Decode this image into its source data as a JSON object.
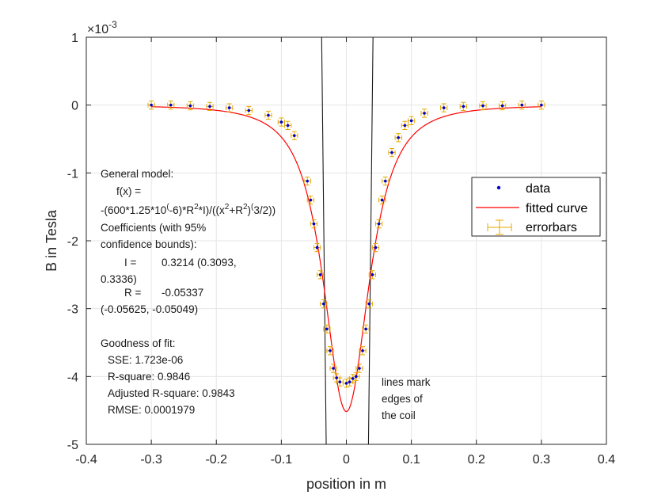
{
  "chart_data": {
    "type": "scatter",
    "title": "",
    "xlabel": "position in m",
    "ylabel": "B in Tesla",
    "exponent_label": "×10",
    "exponent_power": "-3",
    "xlim": [
      -0.4,
      0.4
    ],
    "ylim": [
      -5,
      1
    ],
    "x_ticks": [
      -0.4,
      -0.3,
      -0.2,
      -0.1,
      0,
      0.1,
      0.2,
      0.3,
      0.4
    ],
    "x_tick_labels": [
      "-0.4",
      "-0.3",
      "-0.2",
      "-0.1",
      "0",
      "0.1",
      "0.2",
      "0.3",
      "0.4"
    ],
    "y_ticks": [
      -5,
      -4,
      -3,
      -2,
      -1,
      0,
      1
    ],
    "y_tick_labels": [
      "-5",
      "-4",
      "-3",
      "-2",
      "-1",
      "0",
      "1"
    ],
    "grid": true,
    "legend_position": "right",
    "series": [
      {
        "name": "data",
        "color": "#0000cc",
        "points": [
          [
            -0.3,
            0.0
          ],
          [
            -0.27,
            0.0
          ],
          [
            -0.24,
            -0.01
          ],
          [
            -0.21,
            -0.02
          ],
          [
            -0.18,
            -0.04
          ],
          [
            -0.15,
            -0.08
          ],
          [
            -0.12,
            -0.15
          ],
          [
            -0.1,
            -0.25
          ],
          [
            -0.09,
            -0.3
          ],
          [
            -0.08,
            -0.45
          ],
          [
            -0.06,
            -1.12
          ],
          [
            -0.055,
            -1.4
          ],
          [
            -0.05,
            -1.75
          ],
          [
            -0.045,
            -2.1
          ],
          [
            -0.04,
            -2.5
          ],
          [
            -0.035,
            -2.93
          ],
          [
            -0.03,
            -3.3
          ],
          [
            -0.025,
            -3.62
          ],
          [
            -0.02,
            -3.88
          ],
          [
            -0.015,
            -4.02
          ],
          [
            -0.01,
            -4.08
          ],
          [
            0.0,
            -4.1
          ],
          [
            0.005,
            -4.08
          ],
          [
            0.01,
            -4.03
          ],
          [
            0.015,
            -4.0
          ],
          [
            0.02,
            -3.88
          ],
          [
            0.025,
            -3.62
          ],
          [
            0.03,
            -3.3
          ],
          [
            0.035,
            -2.93
          ],
          [
            0.04,
            -2.5
          ],
          [
            0.045,
            -2.1
          ],
          [
            0.05,
            -1.75
          ],
          [
            0.055,
            -1.4
          ],
          [
            0.06,
            -1.12
          ],
          [
            0.07,
            -0.7
          ],
          [
            0.08,
            -0.48
          ],
          [
            0.09,
            -0.3
          ],
          [
            0.1,
            -0.23
          ],
          [
            0.12,
            -0.12
          ],
          [
            0.15,
            -0.04
          ],
          [
            0.18,
            -0.02
          ],
          [
            0.21,
            -0.01
          ],
          [
            0.24,
            -0.01
          ],
          [
            0.27,
            0.0
          ],
          [
            0.3,
            0.0
          ]
        ]
      },
      {
        "name": "fitted curve",
        "color": "#ff0000",
        "model": {
          "I": 0.3214,
          "R": -0.05337
        },
        "x_range": [
          -0.3,
          0.3
        ]
      },
      {
        "name": "errorbars",
        "color": "#e6a800",
        "x_error": 0.005,
        "y_error": 0.06
      }
    ],
    "coil_lines": [
      {
        "x_top": -0.038,
        "x_bottom": -0.031
      },
      {
        "x_top": 0.041,
        "x_bottom": 0.034
      }
    ]
  },
  "fit_text": {
    "l1": "General model:",
    "l2": "f(x) =",
    "l3a": "-(600*1.25*10",
    "l3b": "(",
    "l3c": "-6)*R",
    "l3d": "2",
    "l3e": "*I)/((x",
    "l3f": "2",
    "l3g": "+R",
    "l3h": "2",
    "l3i": ")",
    "l3j": "(",
    "l3k": "3/2))",
    "l4": "Coefficients (with 95%",
    "l5": "confidence bounds):",
    "l6a": "I =",
    "l6b": "0.3214  (0.3093,",
    "l7": "0.3336)",
    "l8a": "R =",
    "l8b": "-0.05337",
    "l9": "(-0.05625, -0.05049)",
    "l10": "Goodness of fit:",
    "l11": "SSE: 1.723e-06",
    "l12": "R-square: 0.9846",
    "l13": "Adjusted R-square: 0.9843",
    "l14": "RMSE: 0.0001979"
  },
  "coil_note": {
    "line1": "lines mark",
    "line2": "edges of",
    "line3": "the coil"
  }
}
